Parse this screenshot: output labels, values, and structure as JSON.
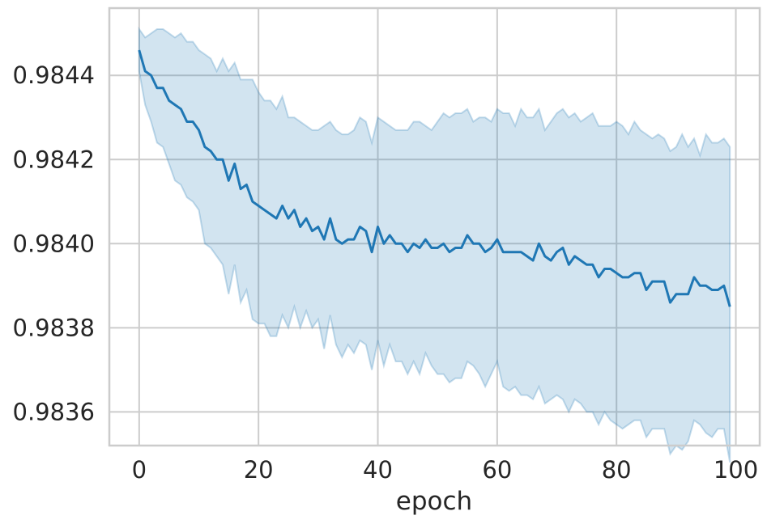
{
  "chart_data": {
    "type": "line",
    "xlabel": "epoch",
    "ylabel": "",
    "xlim": [
      -5,
      104
    ],
    "ylim": [
      0.98352,
      0.98456
    ],
    "xticks": [
      0,
      20,
      40,
      60,
      80,
      100
    ],
    "xtick_labels": [
      "0",
      "20",
      "40",
      "60",
      "80",
      "100"
    ],
    "yticks": [
      0.9836,
      0.9838,
      0.984,
      0.9842,
      0.9844
    ],
    "ytick_labels": [
      "0.9836",
      "0.9838",
      "0.9840",
      "0.9842",
      "0.9844"
    ],
    "grid": true,
    "colors": {
      "line": "#1f77b4",
      "band": "#1f77b4",
      "grid": "#cccccc",
      "spine": "#cccccc"
    },
    "series": [
      {
        "x": [
          0,
          1,
          2,
          3,
          4,
          5,
          6,
          7,
          8,
          9,
          10,
          11,
          12,
          13,
          14,
          15,
          16,
          17,
          18,
          19,
          20,
          21,
          22,
          23,
          24,
          25,
          26,
          27,
          28,
          29,
          30,
          31,
          32,
          33,
          34,
          35,
          36,
          37,
          38,
          39,
          40,
          41,
          42,
          43,
          44,
          45,
          46,
          47,
          48,
          49,
          50,
          51,
          52,
          53,
          54,
          55,
          56,
          57,
          58,
          59,
          60,
          61,
          62,
          63,
          64,
          65,
          66,
          67,
          68,
          69,
          70,
          71,
          72,
          73,
          74,
          75,
          76,
          77,
          78,
          79,
          80,
          81,
          82,
          83,
          84,
          85,
          86,
          87,
          88,
          89,
          90,
          91,
          92,
          93,
          94,
          95,
          96,
          97,
          98,
          99
        ],
        "mean": [
          0.98446,
          0.98441,
          0.9844,
          0.98437,
          0.98437,
          0.98434,
          0.98433,
          0.98432,
          0.98429,
          0.98429,
          0.98427,
          0.98423,
          0.98422,
          0.9842,
          0.9842,
          0.98415,
          0.98419,
          0.98413,
          0.98414,
          0.9841,
          0.98409,
          0.98408,
          0.98407,
          0.98406,
          0.98409,
          0.98406,
          0.98408,
          0.98404,
          0.98406,
          0.98403,
          0.98404,
          0.98401,
          0.98406,
          0.98401,
          0.984,
          0.98401,
          0.98401,
          0.98404,
          0.98403,
          0.98398,
          0.98404,
          0.984,
          0.98402,
          0.984,
          0.984,
          0.98398,
          0.984,
          0.98399,
          0.98401,
          0.98399,
          0.98399,
          0.984,
          0.98398,
          0.98399,
          0.98399,
          0.98402,
          0.984,
          0.984,
          0.98398,
          0.98399,
          0.98401,
          0.98398,
          0.98398,
          0.98398,
          0.98398,
          0.98397,
          0.98396,
          0.984,
          0.98397,
          0.98396,
          0.98398,
          0.98399,
          0.98395,
          0.98397,
          0.98396,
          0.98395,
          0.98395,
          0.98392,
          0.98394,
          0.98394,
          0.98393,
          0.98392,
          0.98392,
          0.98393,
          0.98393,
          0.98389,
          0.98391,
          0.98391,
          0.98391,
          0.98386,
          0.98388,
          0.98388,
          0.98388,
          0.98392,
          0.9839,
          0.9839,
          0.98389,
          0.98389,
          0.9839,
          0.98385
        ],
        "lower": [
          0.98441,
          0.98433,
          0.98429,
          0.98424,
          0.98423,
          0.98419,
          0.98415,
          0.98414,
          0.98411,
          0.9841,
          0.98408,
          0.984,
          0.98399,
          0.98397,
          0.98395,
          0.98388,
          0.98395,
          0.98386,
          0.98389,
          0.98382,
          0.98381,
          0.98381,
          0.98378,
          0.98378,
          0.98383,
          0.9838,
          0.98385,
          0.9838,
          0.98384,
          0.9838,
          0.98382,
          0.98375,
          0.98383,
          0.98376,
          0.98373,
          0.98376,
          0.98374,
          0.98377,
          0.98376,
          0.9837,
          0.98377,
          0.98371,
          0.98376,
          0.98372,
          0.98372,
          0.98369,
          0.98372,
          0.98369,
          0.98374,
          0.98371,
          0.98369,
          0.98369,
          0.98367,
          0.98368,
          0.98368,
          0.98372,
          0.98371,
          0.98369,
          0.98366,
          0.98369,
          0.98372,
          0.98366,
          0.98365,
          0.98366,
          0.98364,
          0.98364,
          0.98363,
          0.98366,
          0.98362,
          0.98363,
          0.98364,
          0.98363,
          0.9836,
          0.98363,
          0.98362,
          0.9836,
          0.9836,
          0.98357,
          0.9836,
          0.98358,
          0.98357,
          0.98356,
          0.98357,
          0.98358,
          0.98358,
          0.98354,
          0.98356,
          0.98356,
          0.98356,
          0.9835,
          0.98352,
          0.98351,
          0.98353,
          0.98358,
          0.98357,
          0.98355,
          0.98354,
          0.98356,
          0.98356,
          0.98348
        ],
        "upper": [
          0.98451,
          0.98449,
          0.9845,
          0.98451,
          0.98451,
          0.9845,
          0.98449,
          0.9845,
          0.98448,
          0.98448,
          0.98446,
          0.98445,
          0.98444,
          0.98441,
          0.98444,
          0.98441,
          0.98443,
          0.98439,
          0.98439,
          0.98439,
          0.98436,
          0.98434,
          0.98434,
          0.98432,
          0.98435,
          0.9843,
          0.9843,
          0.98429,
          0.98428,
          0.98427,
          0.98427,
          0.98428,
          0.98429,
          0.98427,
          0.98426,
          0.98426,
          0.98427,
          0.9843,
          0.98429,
          0.98424,
          0.9843,
          0.98429,
          0.98428,
          0.98427,
          0.98427,
          0.98427,
          0.98429,
          0.98429,
          0.98428,
          0.98427,
          0.98429,
          0.98431,
          0.9843,
          0.98431,
          0.98431,
          0.98432,
          0.98429,
          0.9843,
          0.9843,
          0.98429,
          0.98432,
          0.98431,
          0.98431,
          0.98428,
          0.98432,
          0.9843,
          0.9843,
          0.98432,
          0.98427,
          0.98429,
          0.98431,
          0.98432,
          0.9843,
          0.98431,
          0.98429,
          0.9843,
          0.98431,
          0.98428,
          0.98428,
          0.98428,
          0.98429,
          0.98428,
          0.98426,
          0.98429,
          0.98427,
          0.98426,
          0.98425,
          0.98426,
          0.98425,
          0.98422,
          0.98423,
          0.98426,
          0.98423,
          0.98425,
          0.98421,
          0.98426,
          0.98424,
          0.98424,
          0.98425,
          0.98423
        ]
      }
    ]
  }
}
